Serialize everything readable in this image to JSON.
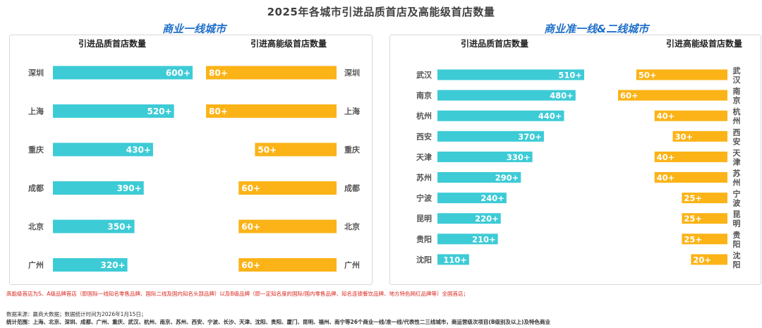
{
  "title": "2025年各城市引进品质首店及高能级首店数量",
  "colors": {
    "quality": "#3dcbd6",
    "high": "#fbb317",
    "panel_title": "#1f6fc9"
  },
  "chart_data": [
    {
      "type": "bar",
      "panel_title": "商业一线城市",
      "left_header": "引进品质首店数量",
      "right_header": "引进高能级首店数量",
      "cities": [
        "深圳",
        "上海",
        "重庆",
        "成都",
        "北京",
        "广州"
      ],
      "series": [
        {
          "name": "引进品质首店数量",
          "values": [
            600,
            520,
            430,
            390,
            350,
            320
          ],
          "labels": [
            "600+",
            "520+",
            "430+",
            "390+",
            "350+",
            "320+"
          ]
        },
        {
          "name": "引进高能级首店数量",
          "values": [
            80,
            80,
            50,
            60,
            60,
            60
          ],
          "labels": [
            "80+",
            "80+",
            "50+",
            "60+",
            "60+",
            "60+"
          ]
        }
      ]
    },
    {
      "type": "bar",
      "panel_title": "商业准一线&二线城市",
      "left_header": "引进品质首店数量",
      "right_header": "引进高能级首店数量",
      "cities": [
        "武汉",
        "南京",
        "杭州",
        "西安",
        "天津",
        "苏州",
        "宁波",
        "昆明",
        "贵阳",
        "沈阳"
      ],
      "series": [
        {
          "name": "引进品质首店数量",
          "values": [
            510,
            480,
            440,
            370,
            330,
            290,
            240,
            220,
            210,
            110
          ],
          "labels": [
            "510+",
            "480+",
            "440+",
            "370+",
            "330+",
            "290+",
            "240+",
            "220+",
            "210+",
            "110+"
          ]
        },
        {
          "name": "引进高能级首店数量",
          "values": [
            50,
            60,
            40,
            30,
            40,
            40,
            25,
            25,
            25,
            20
          ],
          "labels": [
            "50+",
            "60+",
            "40+",
            "30+",
            "40+",
            "40+",
            "25+",
            "25+",
            "25+",
            "20+"
          ]
        }
      ]
    }
  ],
  "footnotes": {
    "note": "高能级首店为S、A级品牌首店（即国际一线知名零售品牌、国际二线及国内知名头部品牌）以及B级品牌（即一定知名度的国际/国内零售品牌、知名连锁餐饮品牌、地方特色网红品牌等）全国首店；",
    "source": "数据来源：赢商大数据；数据统计时间为2026年1月15日；",
    "scope": "统计范围：上海、北京、深圳、成都、广州、重庆、武汉、杭州、南京、苏州、西安、宁波、长沙、天津、沈阳、贵阳、厦门、昆明、福州、南宁等26个商业一线/准一线/代表性二三线城市，商运营级次项目(B级别及以上)及特色商业"
  }
}
